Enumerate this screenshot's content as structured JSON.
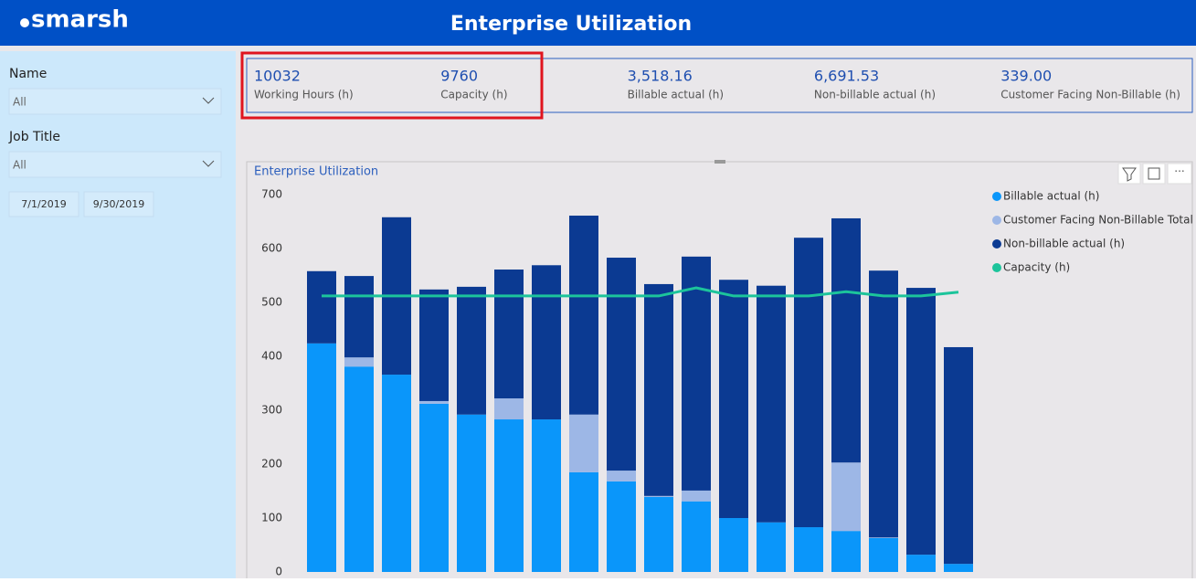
{
  "header": {
    "logo": "smarsh",
    "title": "Enterprise Utilization"
  },
  "filters": {
    "name_label": "Name",
    "name_value": "All",
    "job_label": "Job Title",
    "job_value": "All",
    "start_date": "7/1/2019",
    "end_date": "9/30/2019"
  },
  "kpis": [
    {
      "value": "10032",
      "label": "Working Hours (h)"
    },
    {
      "value": "9760",
      "label": "Capacity (h)"
    },
    {
      "value": "3,518.16",
      "label": "Billable actual (h)"
    },
    {
      "value": "6,691.53",
      "label": "Non-billable actual (h)"
    },
    {
      "value": "339.00",
      "label": "Customer Facing Non-Billable (h)"
    }
  ],
  "chart_data": {
    "type": "bar",
    "stacked": true,
    "title": "Enterprise Utilization",
    "categories": [
      null,
      null,
      null,
      null,
      null,
      null,
      null,
      null,
      null,
      null,
      null,
      null,
      null,
      null,
      null,
      null,
      null,
      null
    ],
    "series": [
      {
        "name": "Billable actual (h)",
        "color": "#0a96fa",
        "values": [
          424,
          381,
          366,
          312,
          292,
          283,
          283,
          185,
          168,
          139,
          131,
          100,
          92,
          83,
          76,
          63,
          32,
          15
        ]
      },
      {
        "name": "Customer Facing Non-Billable Total",
        "color": "#9db7e6",
        "values": [
          0,
          17,
          0,
          5,
          0,
          39,
          0,
          107,
          20,
          2,
          20,
          0,
          0,
          0,
          127,
          1,
          0,
          0
        ]
      },
      {
        "name": "Non-billable actual (h)",
        "color": "#0b3a92",
        "values": [
          134,
          151,
          292,
          207,
          237,
          239,
          286,
          369,
          395,
          393,
          434,
          442,
          439,
          537,
          453,
          495,
          495,
          402
        ]
      },
      {
        "name": "Capacity (h)",
        "color": "#1cc49b",
        "type": "line",
        "values": [
          512,
          512,
          512,
          512,
          512,
          512,
          512,
          512,
          512,
          512,
          527,
          512,
          512,
          512,
          520,
          512,
          512,
          519
        ]
      }
    ],
    "ylim": [
      0,
      700
    ],
    "yticks": [
      0,
      100,
      200,
      300,
      400,
      500,
      600,
      700
    ],
    "legend": "right"
  }
}
